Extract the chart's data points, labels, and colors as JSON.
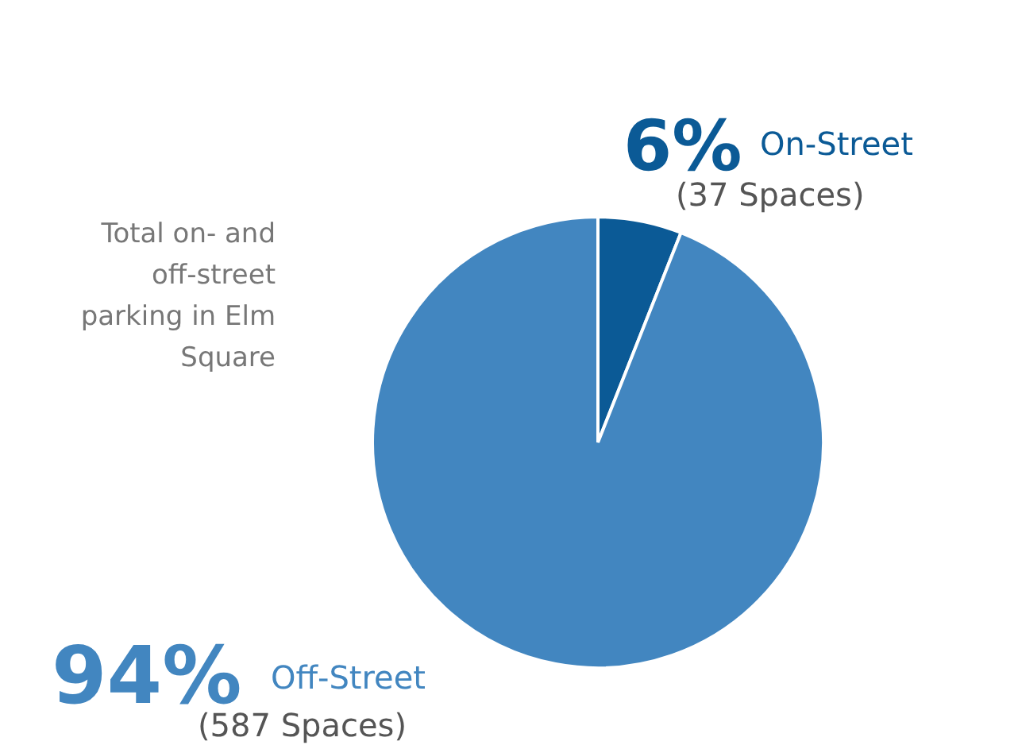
{
  "chart_data": {
    "type": "pie",
    "categories": [
      "On-Street",
      "Off-Street"
    ],
    "values": [
      6,
      94
    ],
    "colors": [
      "#0b5a96",
      "#4286c0"
    ],
    "value_labels": [
      "6%",
      "94%"
    ],
    "annotations": [
      "(37 Spaces)",
      "(587 Spaces)",
      "Total on- and off-street parking in Elm Square"
    ]
  }
}
